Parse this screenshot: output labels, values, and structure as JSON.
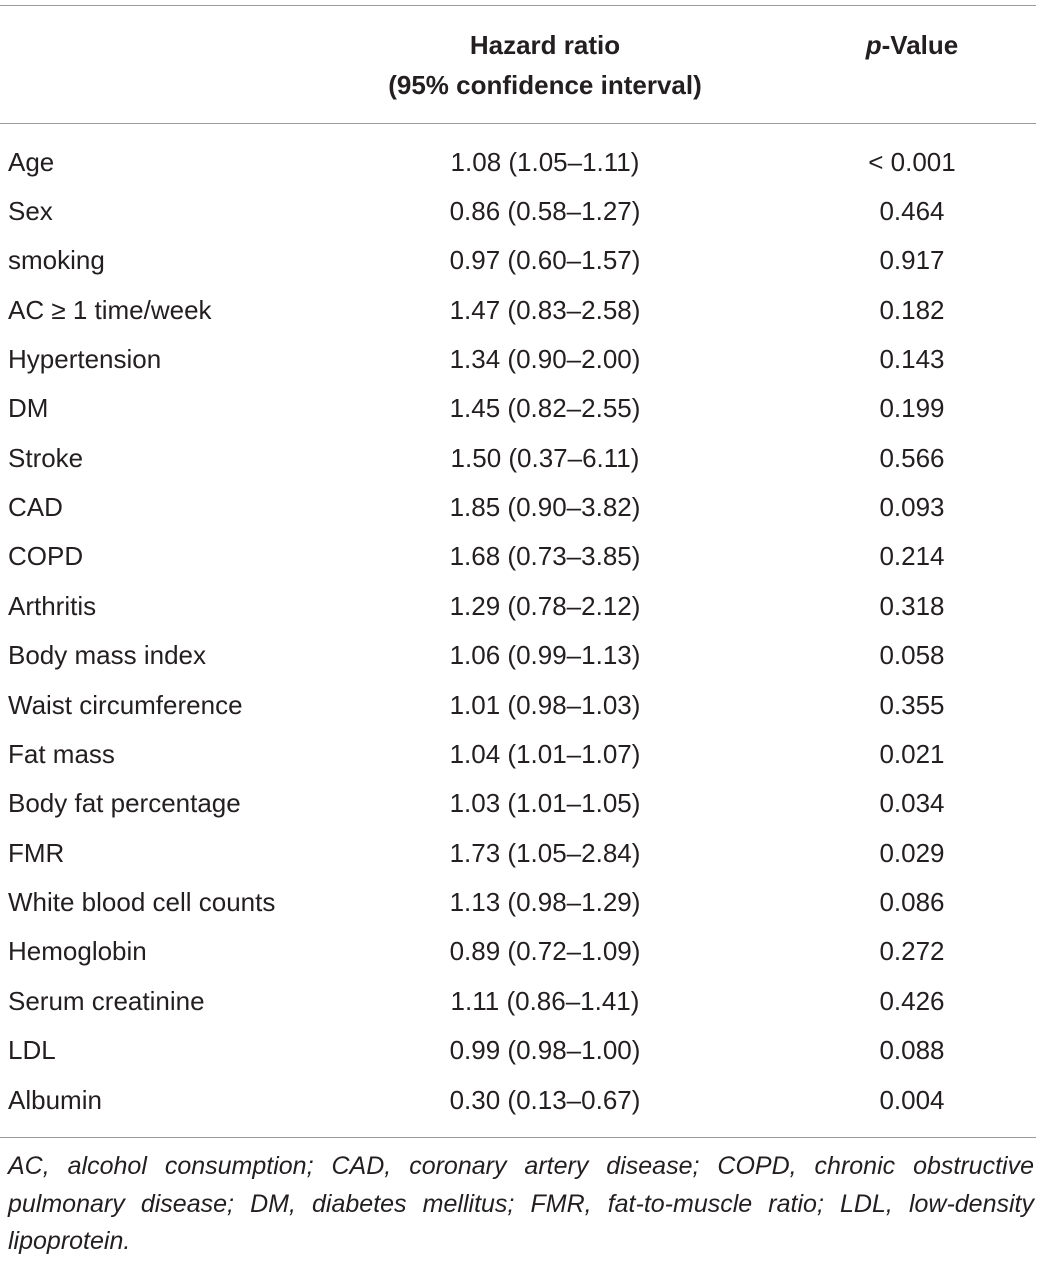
{
  "header": {
    "columns": [
      [
        "Hazard ratio",
        "(95% confidence interval)"
      ]
    ],
    "pvalue": {
      "italic": "p",
      "rest": "-Value"
    }
  },
  "table": {
    "rows": [
      [
        "Age",
        "1.08 (1.05–1.11)",
        "< 0.001"
      ],
      [
        "Sex",
        "0.86 (0.58–1.27)",
        "0.464"
      ],
      [
        "smoking",
        "0.97 (0.60–1.57)",
        "0.917"
      ],
      [
        "AC ≥ 1 time/week",
        "1.47 (0.83–2.58)",
        "0.182"
      ],
      [
        "Hypertension",
        "1.34 (0.90–2.00)",
        "0.143"
      ],
      [
        "DM",
        "1.45 (0.82–2.55)",
        "0.199"
      ],
      [
        "Stroke",
        "1.50 (0.37–6.11)",
        "0.566"
      ],
      [
        "CAD",
        "1.85 (0.90–3.82)",
        "0.093"
      ],
      [
        "COPD",
        "1.68 (0.73–3.85)",
        "0.214"
      ],
      [
        "Arthritis",
        "1.29 (0.78–2.12)",
        "0.318"
      ],
      [
        "Body mass index",
        "1.06 (0.99–1.13)",
        "0.058"
      ],
      [
        "Waist circumference",
        "1.01 (0.98–1.03)",
        "0.355"
      ],
      [
        "Fat mass",
        "1.04 (1.01–1.07)",
        "0.021"
      ],
      [
        "Body fat percentage",
        "1.03 (1.01–1.05)",
        "0.034"
      ],
      [
        "FMR",
        "1.73 (1.05–2.84)",
        "0.029"
      ],
      [
        "White blood cell counts",
        "1.13 (0.98–1.29)",
        "0.086"
      ],
      [
        "Hemoglobin",
        "0.89 (0.72–1.09)",
        "0.272"
      ],
      [
        "Serum creatinine",
        "1.11 (0.86–1.41)",
        "0.426"
      ],
      [
        "LDL",
        "0.99 (0.98–1.00)",
        "0.088"
      ],
      [
        "Albumin",
        "0.30 (0.13–0.67)",
        "0.004"
      ]
    ]
  },
  "footnote": "AC, alcohol consumption; CAD, coronary artery disease; COPD, chronic obstructive pulmonary disease; DM, diabetes mellitus; FMR, fat-to-muscle ratio; LDL, low-density lipoprotein."
}
